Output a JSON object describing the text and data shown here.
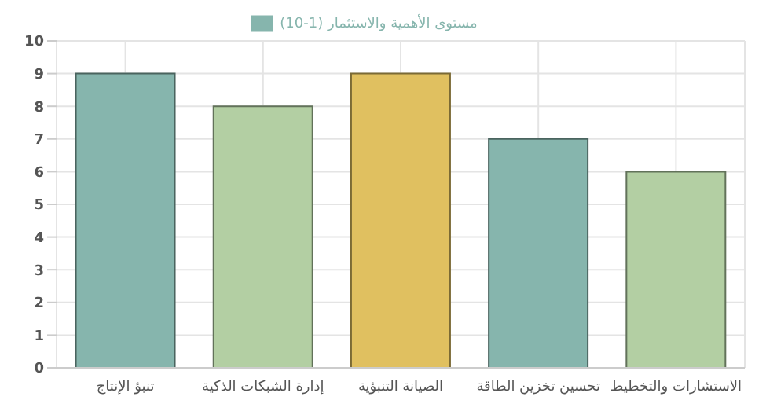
{
  "chart_data": {
    "type": "bar",
    "categories": [
      "تنبؤ الإنتاج",
      "إدارة الشبكات الذكية",
      "الصيانة التنبؤية",
      "تحسين تخزين الطاقة",
      "الاستشارات والتخطيط"
    ],
    "series": [
      {
        "name": "مستوى الأهمية والاستثمار (1-10)",
        "color": "#86b5ad",
        "colors": [
          "#86b5ad",
          "#b3cfa3",
          "#e0c060",
          "#86b5ad",
          "#b3cfa3"
        ],
        "values": [
          9,
          8,
          9,
          7,
          6
        ]
      }
    ],
    "ylim": [
      0,
      10
    ],
    "yticks": [
      0,
      1,
      2,
      3,
      4,
      5,
      6,
      7,
      8,
      9,
      10
    ],
    "grid": true,
    "legend": "top"
  }
}
